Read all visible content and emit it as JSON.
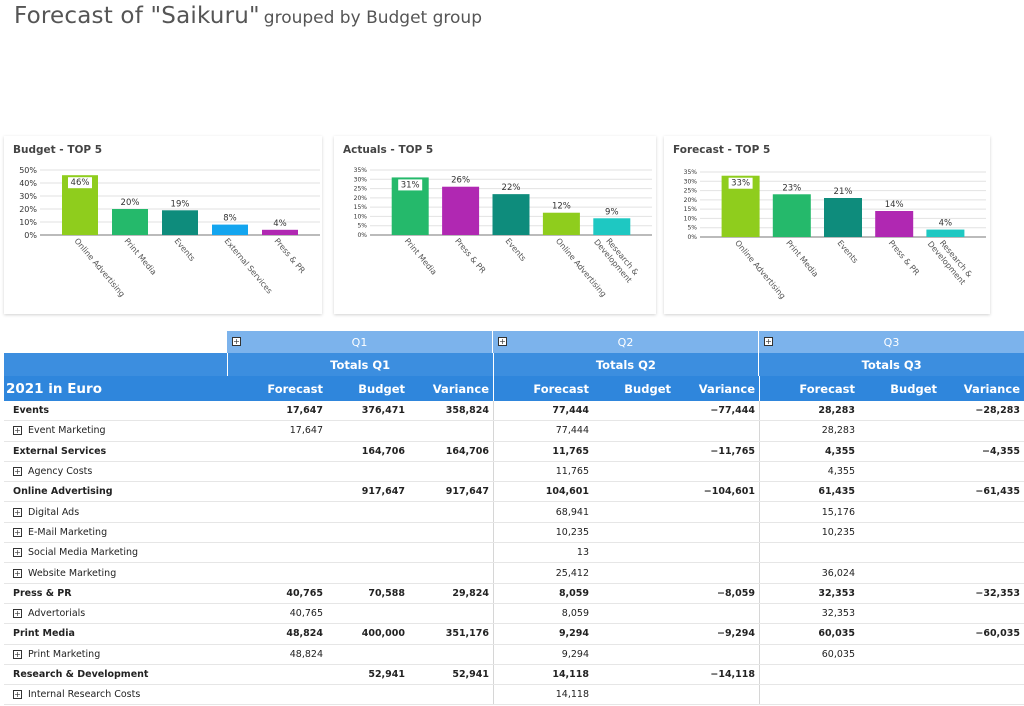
{
  "page_title": {
    "main": "Forecast of \"Saikuru\"",
    "sub": "grouped by Budget group"
  },
  "colors": {
    "green_light": "#8fcd1d",
    "green": "#25b96b",
    "teal": "#0e8c7c",
    "blue": "#13a5ef",
    "purple": "#b028b2",
    "cyan": "#1ec8c2",
    "header_light": "#7cb3ec",
    "header_dark": "#2f86dc"
  },
  "chart_data": [
    {
      "type": "bar",
      "title": "Budget - TOP 5",
      "categories": [
        "Online Advertising",
        "Print Media",
        "Events",
        "External Services",
        "Press & PR"
      ],
      "values": [
        46,
        20,
        19,
        8,
        4
      ],
      "data_labels": [
        "46%",
        "20%",
        "19%",
        "8%",
        "4%"
      ],
      "colors": [
        "#8fcd1d",
        "#25b96b",
        "#0e8c7c",
        "#13a5ef",
        "#b028b2"
      ],
      "yticks": [
        "0%",
        "10%",
        "20%",
        "30%",
        "40%",
        "50%"
      ],
      "ylim": [
        0,
        50
      ]
    },
    {
      "type": "bar",
      "title": "Actuals - TOP 5",
      "categories": [
        "Print Media",
        "Press & PR",
        "Events",
        "Online Advertising",
        "Research & Development"
      ],
      "values": [
        31,
        26,
        22,
        12,
        9
      ],
      "data_labels": [
        "31%",
        "26%",
        "22%",
        "12%",
        "9%"
      ],
      "colors": [
        "#25b96b",
        "#b028b2",
        "#0e8c7c",
        "#8fcd1d",
        "#1ec8c2"
      ],
      "yticks": [
        "0%",
        "5%",
        "10%",
        "15%",
        "20%",
        "25%",
        "30%",
        "35%"
      ],
      "ylim": [
        0,
        35
      ]
    },
    {
      "type": "bar",
      "title": "Forecast - TOP 5",
      "categories": [
        "Online Advertising",
        "Print Media",
        "Events",
        "Press & PR",
        "Research & Development"
      ],
      "values": [
        33,
        23,
        21,
        14,
        4
      ],
      "data_labels": [
        "33%",
        "23%",
        "21%",
        "14%",
        "4%"
      ],
      "colors": [
        "#8fcd1d",
        "#25b96b",
        "#0e8c7c",
        "#b028b2",
        "#1ec8c2"
      ],
      "yticks": [
        "0%",
        "5%",
        "10%",
        "15%",
        "20%",
        "25%",
        "30%",
        "35%"
      ],
      "ylim": [
        0,
        35
      ]
    }
  ],
  "grid": {
    "corner_label": "2021 in Euro",
    "quarters": [
      {
        "label": "Q1",
        "totals": "Totals Q1"
      },
      {
        "label": "Q2",
        "totals": "Totals Q2"
      },
      {
        "label": "Q3",
        "totals": "Totals Q3"
      }
    ],
    "measures": [
      "Forecast",
      "Budget",
      "Variance"
    ],
    "rows": [
      {
        "name": "Events",
        "group": true,
        "values": [
          "17,647",
          "376,471",
          "358,824",
          "77,444",
          "",
          "−77,444",
          "28,283",
          "",
          "−28,283"
        ]
      },
      {
        "name": "Event Marketing",
        "group": false,
        "values": [
          "17,647",
          "",
          "",
          "77,444",
          "",
          "",
          "28,283",
          "",
          ""
        ]
      },
      {
        "name": "External Services",
        "group": true,
        "values": [
          "",
          "164,706",
          "164,706",
          "11,765",
          "",
          "−11,765",
          "4,355",
          "",
          "−4,355"
        ]
      },
      {
        "name": "Agency Costs",
        "group": false,
        "values": [
          "",
          "",
          "",
          "11,765",
          "",
          "",
          "4,355",
          "",
          ""
        ]
      },
      {
        "name": "Online Advertising",
        "group": true,
        "values": [
          "",
          "917,647",
          "917,647",
          "104,601",
          "",
          "−104,601",
          "61,435",
          "",
          "−61,435"
        ]
      },
      {
        "name": "Digital Ads",
        "group": false,
        "values": [
          "",
          "",
          "",
          "68,941",
          "",
          "",
          "15,176",
          "",
          ""
        ]
      },
      {
        "name": "E-Mail Marketing",
        "group": false,
        "values": [
          "",
          "",
          "",
          "10,235",
          "",
          "",
          "10,235",
          "",
          ""
        ]
      },
      {
        "name": "Social Media Marketing",
        "group": false,
        "values": [
          "",
          "",
          "",
          "13",
          "",
          "",
          "",
          "",
          ""
        ]
      },
      {
        "name": "Website Marketing",
        "group": false,
        "values": [
          "",
          "",
          "",
          "25,412",
          "",
          "",
          "36,024",
          "",
          ""
        ]
      },
      {
        "name": "Press & PR",
        "group": true,
        "values": [
          "40,765",
          "70,588",
          "29,824",
          "8,059",
          "",
          "−8,059",
          "32,353",
          "",
          "−32,353"
        ]
      },
      {
        "name": "Advertorials",
        "group": false,
        "values": [
          "40,765",
          "",
          "",
          "8,059",
          "",
          "",
          "32,353",
          "",
          ""
        ]
      },
      {
        "name": "Print Media",
        "group": true,
        "values": [
          "48,824",
          "400,000",
          "351,176",
          "9,294",
          "",
          "−9,294",
          "60,035",
          "",
          "−60,035"
        ]
      },
      {
        "name": "Print Marketing",
        "group": false,
        "values": [
          "48,824",
          "",
          "",
          "9,294",
          "",
          "",
          "60,035",
          "",
          ""
        ]
      },
      {
        "name": "Research & Development",
        "group": true,
        "values": [
          "",
          "52,941",
          "52,941",
          "14,118",
          "",
          "−14,118",
          "",
          "",
          ""
        ]
      },
      {
        "name": "Internal Research Costs",
        "group": false,
        "values": [
          "",
          "",
          "",
          "14,118",
          "",
          "",
          "",
          "",
          ""
        ]
      }
    ]
  }
}
